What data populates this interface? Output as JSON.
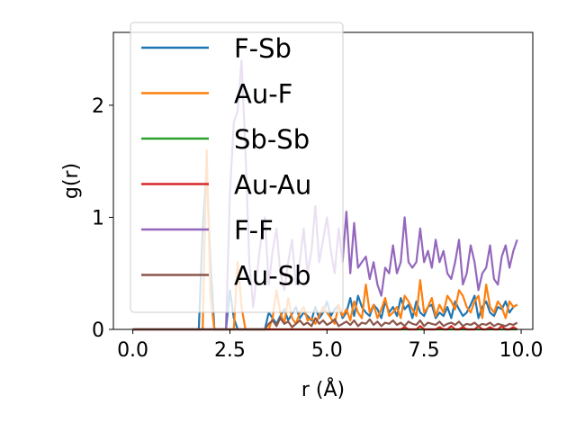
{
  "chart_data": {
    "type": "line",
    "title": "",
    "xlabel": "r (Å)",
    "ylabel": "g(r)",
    "xlim": [
      -0.5,
      10.3
    ],
    "ylim": [
      0,
      2.65
    ],
    "xticks": [
      0.0,
      2.5,
      5.0,
      7.5,
      10.0
    ],
    "xtick_labels": [
      "0.0",
      "2.5",
      "5.0",
      "7.5",
      "10.0"
    ],
    "yticks": [
      0,
      1,
      2
    ],
    "ytick_labels": [
      "0",
      "1",
      "2"
    ],
    "grid": false,
    "legend_position": "top-left",
    "x": [
      0.0,
      0.1,
      0.2,
      0.3,
      0.4,
      0.5,
      0.6,
      0.7,
      0.8,
      0.9,
      1.0,
      1.1,
      1.2,
      1.3,
      1.4,
      1.5,
      1.6,
      1.7,
      1.8,
      1.9,
      2.0,
      2.1,
      2.2,
      2.3,
      2.4,
      2.5,
      2.6,
      2.7,
      2.8,
      2.9,
      3.0,
      3.1,
      3.2,
      3.3,
      3.4,
      3.5,
      3.6,
      3.7,
      3.8,
      3.9,
      4.0,
      4.1,
      4.2,
      4.3,
      4.4,
      4.5,
      4.6,
      4.7,
      4.8,
      4.9,
      5.0,
      5.1,
      5.2,
      5.3,
      5.4,
      5.5,
      5.6,
      5.7,
      5.8,
      5.9,
      6.0,
      6.1,
      6.2,
      6.3,
      6.4,
      6.5,
      6.6,
      6.7,
      6.8,
      6.9,
      7.0,
      7.1,
      7.2,
      7.3,
      7.4,
      7.5,
      7.6,
      7.7,
      7.8,
      7.9,
      8.0,
      8.1,
      8.2,
      8.3,
      8.4,
      8.5,
      8.6,
      8.7,
      8.8,
      8.9,
      9.0,
      9.1,
      9.2,
      9.3,
      9.4,
      9.5,
      9.6,
      9.7,
      9.8,
      9.9
    ],
    "series": [
      {
        "name": "F-Sb",
        "color": "#1f77b4",
        "values": [
          0,
          0,
          0,
          0,
          0,
          0,
          0,
          0,
          0,
          0,
          0,
          0,
          0,
          0,
          0,
          0,
          0,
          0,
          0.9,
          1.45,
          0.6,
          0,
          0,
          0,
          0,
          0.35,
          0.1,
          0,
          0,
          0,
          0,
          0,
          0,
          0,
          0,
          0.15,
          0.1,
          0.05,
          0.12,
          0.18,
          0.08,
          0.14,
          0.2,
          0.1,
          0.15,
          0.12,
          0.08,
          0.2,
          0.1,
          0.15,
          0.25,
          0.12,
          0.18,
          0.22,
          0.1,
          0.15,
          0.28,
          0.12,
          0.3,
          0.2,
          0.15,
          0.12,
          0.22,
          0.18,
          0.1,
          0.25,
          0.15,
          0.2,
          0.12,
          0.28,
          0.18,
          0.22,
          0.1,
          0.25,
          0.15,
          0.12,
          0.2,
          0.22,
          0.1,
          0.15,
          0.12,
          0.2,
          0.1,
          0.25,
          0.18,
          0.12,
          0.15,
          0.22,
          0.3,
          0.1,
          0.2,
          0.25,
          0.15,
          0.12,
          0.2,
          0.18,
          0.25,
          0.15,
          0.2,
          0.22
        ]
      },
      {
        "name": "Au-F",
        "color": "#ff7f0e",
        "values": [
          0,
          0,
          0,
          0,
          0,
          0,
          0,
          0,
          0,
          0,
          0,
          0,
          0,
          0,
          0,
          0,
          0,
          0,
          0,
          1.6,
          0.3,
          0,
          0,
          0,
          0,
          0,
          0,
          0.6,
          0.2,
          0,
          0,
          0,
          0,
          0,
          0,
          0,
          0.1,
          0.35,
          0.15,
          0.05,
          0.28,
          0.1,
          0.05,
          0.15,
          0.2,
          0.08,
          0.1,
          0.05,
          0.12,
          0.2,
          0.15,
          0.1,
          0.05,
          0.22,
          0.12,
          0.18,
          0.08,
          0.25,
          0.15,
          0.1,
          0.4,
          0.15,
          0.22,
          0.1,
          0.18,
          0.28,
          0.12,
          0.15,
          0.2,
          0.1,
          0.3,
          0.25,
          0.18,
          0.12,
          0.44,
          0.15,
          0.2,
          0.28,
          0.12,
          0.22,
          0.15,
          0.3,
          0.25,
          0.18,
          0.35,
          0.3,
          0.2,
          0.15,
          0.25,
          0.3,
          0.1,
          0.4,
          0.2,
          0.15,
          0.25,
          0.2,
          0.1,
          0.25,
          0.2,
          0.22
        ]
      },
      {
        "name": "Sb-Sb",
        "color": "#2ca02c",
        "values": [
          0,
          0,
          0,
          0,
          0,
          0,
          0,
          0,
          0,
          0,
          0,
          0,
          0,
          0,
          0,
          0,
          0,
          0,
          0,
          0,
          0,
          0,
          0,
          0,
          0,
          0,
          0,
          0,
          0,
          0,
          0,
          0,
          0,
          0,
          0,
          0,
          0,
          0,
          0,
          0,
          0,
          0,
          0,
          0,
          0,
          0,
          0,
          0,
          0,
          0,
          0,
          0,
          0,
          0,
          0,
          0,
          0,
          0,
          0,
          0,
          0,
          0,
          0,
          0,
          0,
          0,
          0,
          0,
          0,
          0,
          0,
          0,
          0,
          0,
          0,
          0,
          0,
          0,
          0,
          0,
          0,
          0,
          0,
          0,
          0,
          0,
          0,
          0,
          0,
          0,
          0,
          0,
          0,
          0,
          0,
          0,
          0,
          0,
          0,
          0
        ]
      },
      {
        "name": "Au-Au",
        "color": "#d62728",
        "values": [
          0,
          0,
          0,
          0,
          0,
          0,
          0,
          0,
          0,
          0,
          0,
          0,
          0,
          0,
          0,
          0,
          0,
          0,
          0,
          0,
          0,
          0,
          0,
          0,
          0,
          0,
          0,
          0,
          0,
          0,
          0,
          0,
          0,
          0,
          0,
          0,
          0,
          0,
          0,
          0,
          0,
          0,
          0,
          0,
          0,
          0,
          0,
          0,
          0,
          0,
          0,
          0,
          0,
          0,
          0,
          0,
          0,
          0,
          0,
          0,
          0,
          0,
          0,
          0,
          0,
          0,
          0,
          0,
          0,
          0,
          0.02,
          0,
          0,
          0,
          0.03,
          0,
          0,
          0,
          0,
          0.02,
          0,
          0,
          0.03,
          0,
          0,
          0.02,
          0,
          0,
          0,
          0.03,
          0,
          0,
          0.02,
          0,
          0,
          0.03,
          0,
          0,
          0.02,
          0
        ]
      },
      {
        "name": "F-F",
        "color": "#9467bd",
        "values": [
          0,
          0,
          0,
          0,
          0,
          0,
          0,
          0,
          0,
          0,
          0,
          0,
          0,
          0,
          0,
          0,
          0,
          0,
          0,
          0,
          0,
          0,
          0,
          0,
          0,
          1.2,
          1.85,
          1.95,
          2.4,
          1.6,
          0.6,
          0.2,
          0.5,
          0.8,
          1.0,
          0.4,
          0.7,
          0.9,
          0.5,
          0.35,
          0.6,
          0.8,
          0.4,
          0.6,
          0.9,
          0.5,
          0.7,
          1.1,
          0.6,
          0.8,
          1.0,
          0.7,
          0.5,
          0.9,
          0.6,
          1.05,
          0.5,
          0.95,
          0.55,
          0.6,
          0.65,
          0.45,
          0.6,
          0.4,
          0.3,
          0.55,
          0.5,
          0.75,
          0.5,
          0.6,
          1.0,
          0.6,
          0.55,
          0.6,
          0.9,
          0.6,
          0.7,
          0.55,
          0.8,
          0.6,
          0.7,
          0.5,
          0.45,
          0.6,
          0.8,
          0.4,
          0.5,
          0.75,
          0.6,
          0.35,
          0.5,
          0.55,
          0.75,
          0.45,
          0.4,
          0.65,
          0.75,
          0.55,
          0.7,
          0.8
        ]
      },
      {
        "name": "Au-Sb",
        "color": "#8c564b",
        "values": [
          0,
          0,
          0,
          0,
          0,
          0,
          0,
          0,
          0,
          0,
          0,
          0,
          0,
          0,
          0,
          0,
          0,
          0,
          0,
          0,
          0,
          0,
          0,
          0,
          0,
          0,
          0,
          0,
          0,
          0,
          0,
          0,
          0,
          0,
          0,
          0.05,
          0.08,
          0.03,
          0.1,
          0.05,
          0.07,
          0.02,
          0.05,
          0.08,
          0.04,
          0.06,
          0.03,
          0.1,
          0.05,
          0.08,
          0.04,
          0.06,
          0.09,
          0.03,
          0.05,
          0.07,
          0.04,
          0.08,
          0.03,
          0.06,
          0.05,
          0.09,
          0.04,
          0.07,
          0.03,
          0.06,
          0.05,
          0.08,
          0.04,
          0.06,
          0.03,
          0.07,
          0.05,
          0.04,
          0.08,
          0.03,
          0.06,
          0.05,
          0.04,
          0.07,
          0.03,
          0.05,
          0.06,
          0.04,
          0.07,
          0.03,
          0.05,
          0.04,
          0.06,
          0.03,
          0.05,
          0.04,
          0.06,
          0.03,
          0.05,
          0.04,
          0.03,
          0.05,
          0.04,
          0.06
        ]
      }
    ]
  }
}
